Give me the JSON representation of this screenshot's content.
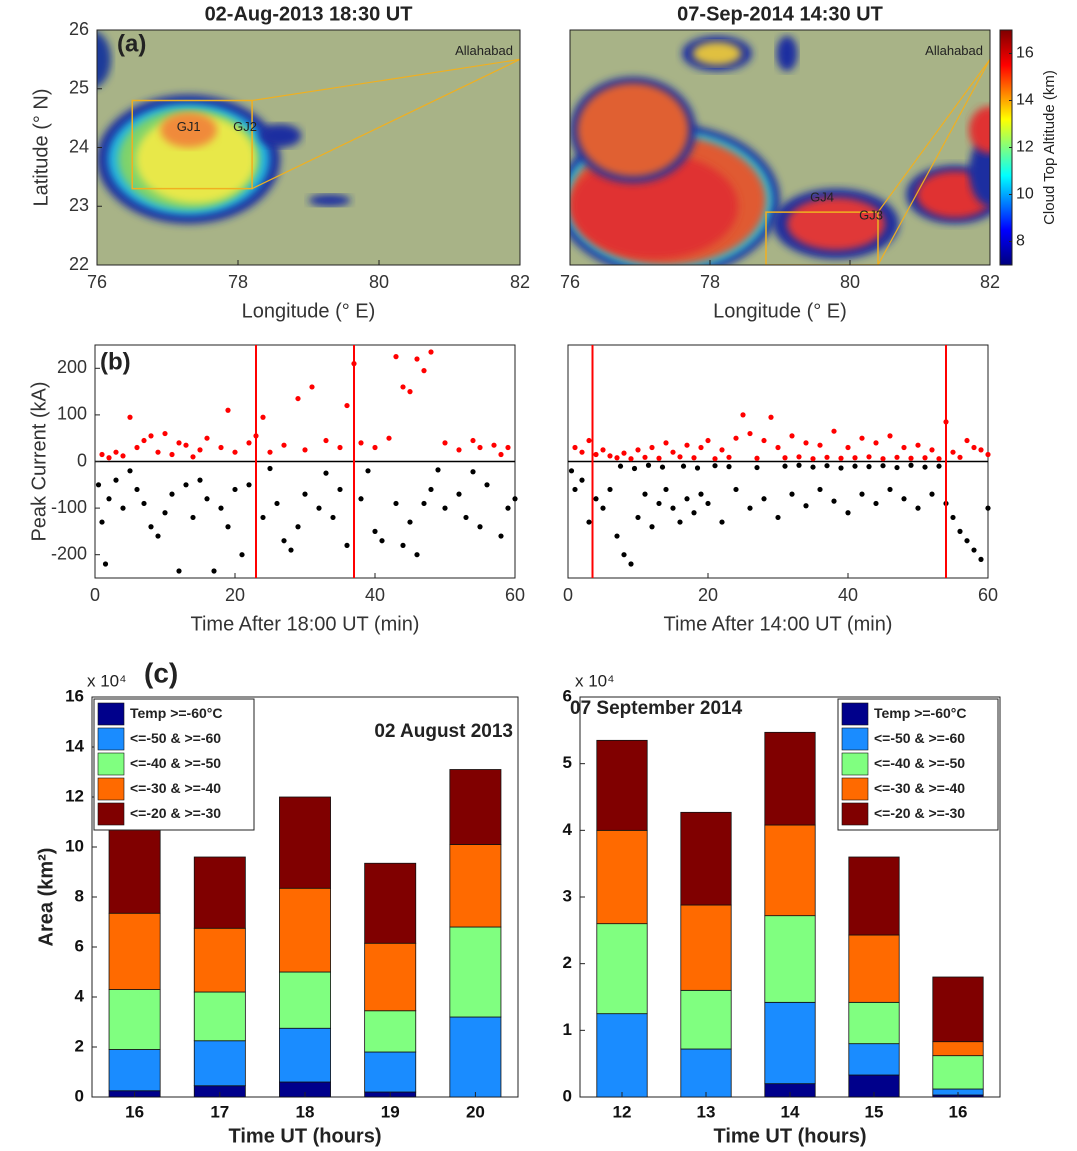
{
  "chart_data": [
    {
      "type": "map",
      "title": "02-Aug-2013 18:30 UT",
      "panel_label": "(a)",
      "xlabel": "Longitude (° E)",
      "ylabel": "Latitude (° N)",
      "xlim": [
        76,
        82
      ],
      "ylim": [
        22,
        26
      ],
      "xticks": [
        76,
        78,
        80,
        82
      ],
      "yticks": [
        22,
        23,
        24,
        25,
        26
      ],
      "annotations": [
        "Allahabad",
        "GJ1",
        "GJ2"
      ]
    },
    {
      "type": "map",
      "title": "07-Sep-2014 14:30 UT",
      "xlabel": "Longitude (° E)",
      "xlim": [
        76,
        82
      ],
      "ylim": [
        22,
        26
      ],
      "xticks": [
        76,
        78,
        80,
        82
      ],
      "annotations": [
        "Allahabad",
        "GJ4",
        "GJ3"
      ],
      "clim": [
        7,
        17
      ],
      "cticks": [
        8,
        10,
        12,
        14,
        16
      ],
      "colorbar_label": "Cloud Top Altitude (km)"
    },
    {
      "type": "scatter",
      "panel_label": "(b)",
      "xlabel": "Time After 18:00 UT (min)",
      "ylabel": "Peak Current (kA)",
      "xlim": [
        0,
        60
      ],
      "ylim": [
        -250,
        250
      ],
      "xticks": [
        0,
        20,
        40,
        60
      ],
      "yticks": [
        -200,
        -100,
        0,
        100,
        200
      ],
      "vlines": [
        23,
        37
      ],
      "vline_color": "#ff0000",
      "series": [
        {
          "color": "#ff0000",
          "x": [
            1,
            2,
            3,
            4,
            5,
            6,
            7,
            8,
            9,
            10,
            11,
            12,
            13,
            14,
            15,
            16,
            18,
            19,
            20,
            22,
            23,
            24,
            25,
            27,
            29,
            30,
            31,
            33,
            35,
            36,
            37,
            38,
            40,
            42,
            43,
            44,
            45,
            46,
            47,
            48,
            50,
            52,
            54,
            55,
            57,
            58,
            59
          ],
          "values": [
            15,
            8,
            20,
            12,
            95,
            30,
            45,
            55,
            20,
            60,
            15,
            40,
            35,
            10,
            25,
            50,
            30,
            110,
            20,
            40,
            55,
            95,
            20,
            35,
            135,
            25,
            160,
            45,
            30,
            120,
            210,
            40,
            30,
            50,
            225,
            160,
            150,
            220,
            195,
            235,
            40,
            25,
            45,
            30,
            35,
            15,
            30
          ]
        },
        {
          "color": "#000000",
          "x": [
            0.5,
            1,
            1.5,
            2,
            3,
            4,
            6,
            7,
            8,
            9,
            10,
            11,
            12,
            13,
            14,
            15,
            16,
            17,
            18,
            19,
            20,
            21,
            22,
            24,
            26,
            27,
            28,
            29,
            30,
            32,
            34,
            35,
            36,
            38,
            40,
            41,
            43,
            44,
            45,
            46,
            47,
            48,
            50,
            52,
            53,
            55,
            56,
            58,
            59,
            60,
            5,
            25,
            33,
            39,
            49,
            54
          ],
          "values": [
            -50,
            -130,
            -220,
            -80,
            -40,
            -100,
            -60,
            -90,
            -140,
            -160,
            -110,
            -70,
            -235,
            -50,
            -120,
            -40,
            -80,
            -235,
            -100,
            -140,
            -60,
            -200,
            -50,
            -120,
            -90,
            -170,
            -190,
            -140,
            -70,
            -100,
            -120,
            -60,
            -180,
            -80,
            -150,
            -170,
            -90,
            -180,
            -130,
            -200,
            -90,
            -60,
            -100,
            -70,
            -120,
            -140,
            -50,
            -160,
            -100,
            -80,
            -20,
            -15,
            -25,
            -20,
            -18,
            -22
          ]
        }
      ]
    },
    {
      "type": "scatter",
      "xlabel": "Time After 14:00 UT (min)",
      "xlim": [
        0,
        60
      ],
      "ylim": [
        -250,
        250
      ],
      "xticks": [
        0,
        20,
        40,
        60
      ],
      "vlines": [
        3.5,
        54
      ],
      "vline_color": "#ff0000",
      "series": [
        {
          "color": "#ff0000",
          "x": [
            1,
            2,
            3,
            4,
            5,
            6,
            8,
            10,
            12,
            14,
            15,
            17,
            19,
            20,
            22,
            24,
            25,
            26,
            28,
            29,
            30,
            32,
            34,
            36,
            38,
            40,
            42,
            44,
            46,
            48,
            50,
            52,
            54,
            55,
            57,
            58,
            59,
            60,
            7,
            9,
            11,
            13,
            16,
            18,
            21,
            23,
            27,
            31,
            33,
            35,
            37,
            39,
            41,
            43,
            45,
            47,
            49,
            51,
            53,
            56
          ],
          "values": [
            30,
            20,
            45,
            15,
            25,
            12,
            18,
            25,
            30,
            40,
            20,
            35,
            30,
            45,
            25,
            50,
            100,
            60,
            45,
            95,
            30,
            55,
            40,
            35,
            65,
            30,
            50,
            40,
            55,
            30,
            35,
            25,
            85,
            20,
            45,
            30,
            25,
            15,
            8,
            6,
            9,
            7,
            10,
            8,
            6,
            9,
            7,
            8,
            10,
            6,
            9,
            7,
            8,
            10,
            6,
            9,
            7,
            8,
            6,
            9
          ]
        },
        {
          "color": "#000000",
          "x": [
            0.5,
            1,
            2,
            3,
            4,
            5,
            6,
            7,
            8,
            9,
            10,
            11,
            12,
            13,
            14,
            15,
            16,
            17,
            18,
            19,
            20,
            22,
            24,
            26,
            28,
            30,
            32,
            34,
            36,
            38,
            40,
            42,
            44,
            46,
            48,
            50,
            52,
            54,
            55,
            56,
            57,
            58,
            59,
            60,
            7.5,
            9.5,
            11.5,
            13.5,
            16.5,
            18.5,
            21,
            23,
            27,
            31,
            33,
            35,
            37,
            39,
            41,
            43,
            45,
            47,
            49,
            51,
            53
          ],
          "values": [
            -20,
            -60,
            -40,
            -130,
            -80,
            -100,
            -60,
            -160,
            -200,
            -220,
            -120,
            -70,
            -140,
            -90,
            -60,
            -100,
            -130,
            -80,
            -110,
            -70,
            -90,
            -130,
            -60,
            -100,
            -80,
            -120,
            -70,
            -95,
            -60,
            -85,
            -110,
            -70,
            -90,
            -60,
            -80,
            -100,
            -70,
            -90,
            -120,
            -150,
            -170,
            -190,
            -210,
            -100,
            -10,
            -15,
            -8,
            -12,
            -10,
            -14,
            -9,
            -11,
            -13,
            -10,
            -8,
            -12,
            -9,
            -14,
            -10,
            -11,
            -9,
            -13,
            -8,
            -12,
            -10
          ]
        }
      ]
    },
    {
      "type": "bar",
      "panel_label": "(c)",
      "multiplier": "x 10⁴",
      "annotation": "02 August 2013",
      "xlabel": "Time UT (hours)",
      "ylabel": "Area (km²)",
      "categories": [
        16,
        17,
        18,
        19,
        20
      ],
      "ylim": [
        0,
        16
      ],
      "yticks": [
        0,
        2,
        4,
        6,
        8,
        10,
        12,
        14,
        16
      ],
      "legend": "upper left",
      "series": [
        {
          "name": "Temp >=-60°C",
          "color": "#00008b",
          "values": [
            0.25,
            0.45,
            0.6,
            0.2,
            0
          ]
        },
        {
          "name": "<=-50  &  >=-60",
          "color": "#1a8cff",
          "values": [
            1.65,
            1.8,
            2.15,
            1.6,
            3.2
          ]
        },
        {
          "name": "<=-40  &  >=-50",
          "color": "#80ff80",
          "values": [
            2.4,
            1.95,
            2.25,
            1.65,
            3.6
          ]
        },
        {
          "name": "<=-30  &  >=-40",
          "color": "#ff6a00",
          "values": [
            3.05,
            2.55,
            3.35,
            2.7,
            3.3
          ]
        },
        {
          "name": "<=-20  &  >=-30",
          "color": "#800000",
          "values": [
            3.85,
            2.85,
            3.65,
            3.2,
            3.0
          ]
        }
      ]
    },
    {
      "type": "bar",
      "multiplier": "x 10⁴",
      "annotation": "07 September 2014",
      "xlabel": "Time UT (hours)",
      "categories": [
        12,
        13,
        14,
        15,
        16
      ],
      "ylim": [
        0,
        6
      ],
      "yticks": [
        0,
        1,
        2,
        3,
        4,
        5,
        6
      ],
      "legend": "upper right",
      "series": [
        {
          "name": "Temp >=-60°C",
          "color": "#00008b",
          "values": [
            0,
            0,
            0.2,
            0.33,
            0.03
          ]
        },
        {
          "name": "<=-50  &  >=-60",
          "color": "#1a8cff",
          "values": [
            1.25,
            0.72,
            1.22,
            0.47,
            0.09
          ]
        },
        {
          "name": "<=-40  &  >=-50",
          "color": "#80ff80",
          "values": [
            1.35,
            0.88,
            1.3,
            0.62,
            0.5
          ]
        },
        {
          "name": "<=-30  &  >=-40",
          "color": "#ff6a00",
          "values": [
            1.4,
            1.28,
            1.36,
            1.01,
            0.21
          ]
        },
        {
          "name": "<=-20  &  >=-30",
          "color": "#800000",
          "values": [
            1.35,
            1.39,
            1.39,
            1.17,
            0.97
          ]
        }
      ]
    }
  ]
}
